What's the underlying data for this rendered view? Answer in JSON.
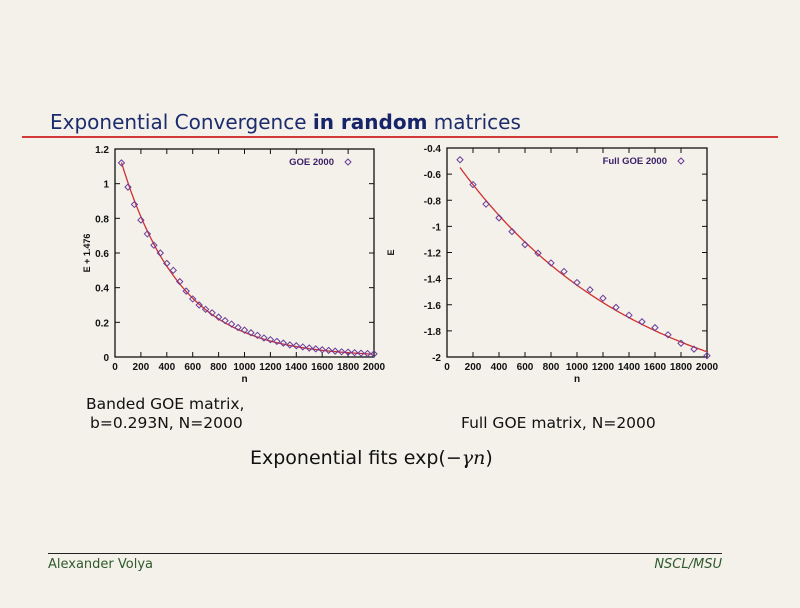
{
  "slide": {
    "title_part1": "Exponential Convergence ",
    "title_part2": "in random",
    "title_part3": " matrices",
    "caption_left_line1": "Banded GOE matrix,",
    "caption_left_line2": "b=0.293N, N=2000",
    "caption_right": "Full GOE matrix, N=2000",
    "fits_text": "Exponential fits exp(",
    "fits_math": "−γn",
    "fits_close": ")",
    "footer_left": "Alexander Volya",
    "footer_right": "NSCL/MSU",
    "colors": {
      "title": "#1d2c6e",
      "rule": "#d23a3a",
      "marker": "#6a3d9a",
      "fit": "#d03030",
      "footer": "#2f5a2c"
    }
  },
  "chart_data": [
    {
      "type": "scatter",
      "xlabel": "n",
      "ylabel": "E + 1.476",
      "xlim": [
        0,
        2000
      ],
      "ylim": [
        0,
        1.2
      ],
      "xticks": [
        "0",
        "200",
        "400",
        "600",
        "800",
        "1000",
        "1200",
        "1400",
        "1600",
        "1800",
        "2000"
      ],
      "yticks": [
        "0",
        "0.2",
        "0.4",
        "0.6",
        "0.8",
        "1",
        "1.2"
      ],
      "legend": "top-right",
      "grid": false,
      "series": [
        {
          "name": "GOE 2000",
          "x": [
            50,
            100,
            150,
            200,
            250,
            300,
            350,
            400,
            450,
            500,
            550,
            600,
            650,
            700,
            750,
            800,
            850,
            900,
            950,
            1000,
            1050,
            1100,
            1150,
            1200,
            1250,
            1300,
            1350,
            1400,
            1450,
            1500,
            1550,
            1600,
            1650,
            1700,
            1750,
            1800,
            1850,
            1900,
            1950,
            2000
          ],
          "y": [
            1.12,
            0.98,
            0.88,
            0.79,
            0.71,
            0.645,
            0.6,
            0.54,
            0.5,
            0.435,
            0.38,
            0.335,
            0.3,
            0.275,
            0.255,
            0.23,
            0.21,
            0.19,
            0.17,
            0.155,
            0.14,
            0.125,
            0.11,
            0.1,
            0.09,
            0.08,
            0.07,
            0.065,
            0.058,
            0.052,
            0.047,
            0.042,
            0.038,
            0.034,
            0.03,
            0.028,
            0.025,
            0.022,
            0.02,
            0.018
          ]
        }
      ],
      "fit": "exponential"
    },
    {
      "type": "scatter",
      "xlabel": "n",
      "ylabel": "E",
      "xlim": [
        0,
        2000
      ],
      "ylim": [
        -2,
        -0.4
      ],
      "xticks": [
        "0",
        "200",
        "400",
        "600",
        "800",
        "1000",
        "1200",
        "1400",
        "1600",
        "1800",
        "2000"
      ],
      "yticks": [
        "-2",
        "-1.8",
        "-1.6",
        "-1.4",
        "-1.2",
        "-1",
        "-0.8",
        "-0.6",
        "-0.4"
      ],
      "legend": "top-right",
      "grid": false,
      "series": [
        {
          "name": "Full GOE 2000",
          "x": [
            100,
            200,
            300,
            400,
            500,
            600,
            700,
            800,
            900,
            1000,
            1100,
            1200,
            1300,
            1400,
            1500,
            1600,
            1700,
            1800,
            1900,
            2000
          ],
          "y": [
            -0.49,
            -0.68,
            -0.83,
            -0.935,
            -1.04,
            -1.14,
            -1.205,
            -1.28,
            -1.345,
            -1.43,
            -1.485,
            -1.55,
            -1.62,
            -1.68,
            -1.73,
            -1.775,
            -1.83,
            -1.895,
            -1.94,
            -1.99
          ]
        }
      ],
      "fit": "exponential"
    }
  ]
}
